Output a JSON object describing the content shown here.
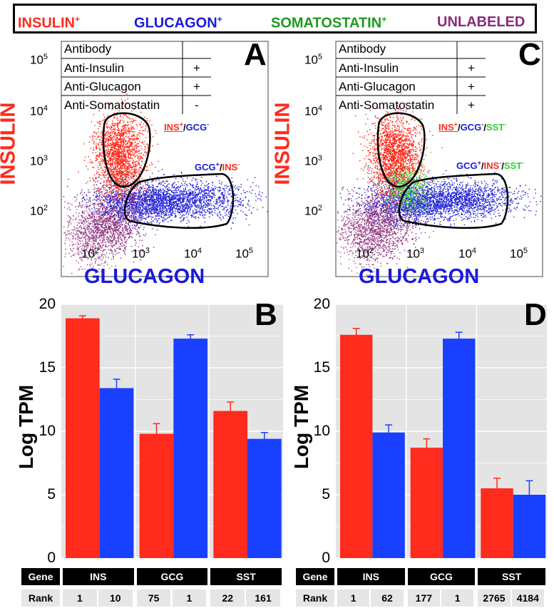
{
  "legend": {
    "insulin": {
      "label": "INSULIN",
      "sup": "+",
      "color": "#ff2b1c"
    },
    "glucagon": {
      "label": "GLUCAGON",
      "sup": "+",
      "color": "#1a1adb"
    },
    "somatostatin": {
      "label": "SOMATOSTATIN",
      "sup": "+",
      "color": "#1f9a1f"
    },
    "unlabeled": {
      "label": "UNLABELED",
      "color": "#8a2a7a"
    }
  },
  "flow_panels": [
    {
      "letter": "A",
      "table": {
        "header": "Antibody",
        "rows": [
          {
            "antibody": "Anti-Insulin",
            "sign": "+"
          },
          {
            "antibody": "Anti-Glucagon",
            "sign": "+"
          },
          {
            "antibody": "Anti-Somatostatin",
            "sign": "-"
          }
        ]
      },
      "gate_ins": {
        "a": "INS",
        "a_sup": "+",
        "sep": "/",
        "b": "GCG",
        "b_sup": "-"
      },
      "gate_gcg": {
        "a": "GCG",
        "a_sup": "+",
        "sep": "/",
        "b": "INS",
        "b_sup": "-"
      },
      "x_label": "GLUCAGON",
      "y_label": "INSULIN"
    },
    {
      "letter": "C",
      "table": {
        "header": "Antibody",
        "rows": [
          {
            "antibody": "Anti-Insulin",
            "sign": "+"
          },
          {
            "antibody": "Anti-Glucagon",
            "sign": "+"
          },
          {
            "antibody": "Anti-Somatostatin",
            "sign": "+"
          }
        ]
      },
      "gate_ins": {
        "a": "INS",
        "a_sup": "+",
        "sep": "/",
        "b": "GCG",
        "b_sup": "-",
        "sep2": "/",
        "c": "SST",
        "c_sup": "-"
      },
      "gate_gcg": {
        "a": "GCG",
        "a_sup": "+",
        "sep": "/",
        "b": "INS",
        "b_sup": "-",
        "sep2": "/",
        "c": "SST",
        "c_sup": "-"
      },
      "x_label": "GLUCAGON",
      "y_label": "INSULIN"
    }
  ],
  "flow_ticks": {
    "base": "10",
    "x_exps": [
      "2",
      "3",
      "4",
      "5"
    ],
    "y_exps": [
      "5",
      "4",
      "3",
      "2"
    ]
  },
  "chart_data": [
    {
      "type": "bar",
      "panel": "B",
      "categories": [
        "INS",
        "GCG",
        "SST"
      ],
      "series": [
        {
          "name": "INSULIN+",
          "color": "#ff2b1c",
          "values": [
            18.9,
            9.8,
            11.6
          ],
          "errors": [
            0.2,
            0.8,
            0.7
          ]
        },
        {
          "name": "GLUCAGON+",
          "color": "#1a40ff",
          "values": [
            13.4,
            17.3,
            9.4
          ],
          "errors": [
            0.7,
            0.3,
            0.5
          ]
        }
      ],
      "ylabel": "Log TPM",
      "ylim": [
        0,
        20
      ],
      "yticks": [
        "0",
        "5",
        "10",
        "15",
        "20"
      ],
      "table": {
        "header_label": "Gene",
        "rank_label": "Rank",
        "ranks": [
          "1",
          "10",
          "75",
          "1",
          "22",
          "161"
        ]
      }
    },
    {
      "type": "bar",
      "panel": "D",
      "categories": [
        "INS",
        "GCG",
        "SST"
      ],
      "series": [
        {
          "name": "INSULIN+",
          "color": "#ff2b1c",
          "values": [
            17.6,
            8.7,
            5.5
          ],
          "errors": [
            0.5,
            0.7,
            0.8
          ]
        },
        {
          "name": "GLUCAGON+",
          "color": "#1a40ff",
          "values": [
            9.9,
            17.3,
            5.0
          ],
          "errors": [
            0.6,
            0.5,
            1.1
          ]
        }
      ],
      "ylabel": "Log TPM",
      "ylim": [
        0,
        20
      ],
      "yticks": [
        "0",
        "5",
        "10",
        "15",
        "20"
      ],
      "table": {
        "header_label": "Gene",
        "rank_label": "Rank",
        "ranks": [
          "1",
          "62",
          "177",
          "1",
          "2765",
          "4184"
        ]
      }
    }
  ]
}
